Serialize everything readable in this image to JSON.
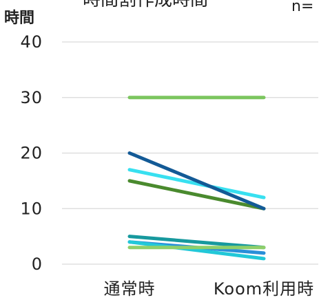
{
  "chart_data": {
    "type": "line",
    "title": "時間割作成時間",
    "note": "n=",
    "ylabel": "時間",
    "xlabel": "",
    "categories": [
      "通常時",
      "Koom利用時"
    ],
    "ylim": [
      0,
      40
    ],
    "yticks": [
      0,
      10,
      20,
      30,
      40
    ],
    "grid": true,
    "series": [
      {
        "values": [
          30,
          30
        ],
        "color": "#7cc65f"
      },
      {
        "values": [
          17,
          12
        ],
        "color": "#38e0f0"
      },
      {
        "values": [
          15,
          10
        ],
        "color": "#4a8a2e"
      },
      {
        "values": [
          20,
          10
        ],
        "color": "#135a96"
      },
      {
        "values": [
          5,
          3
        ],
        "color": "#17999e"
      },
      {
        "values": [
          4,
          2
        ],
        "color": "#2a8fd8"
      },
      {
        "values": [
          4,
          1
        ],
        "color": "#22c8d8"
      },
      {
        "values": [
          3,
          3
        ],
        "color": "#8fcf6a"
      }
    ]
  }
}
